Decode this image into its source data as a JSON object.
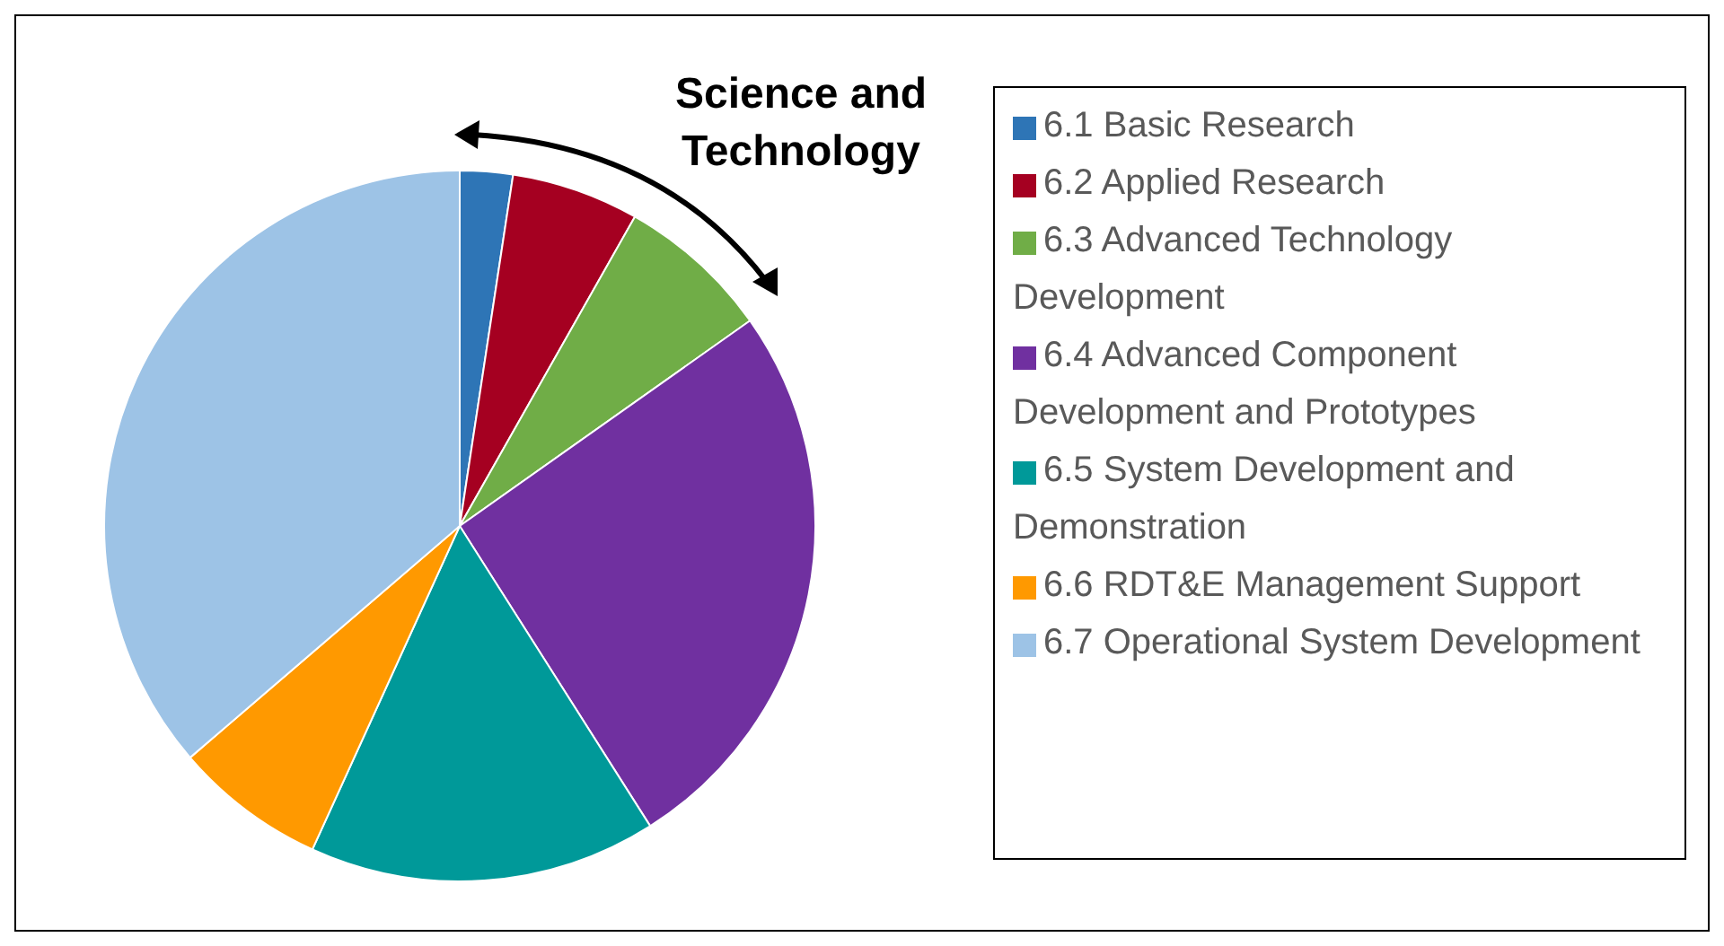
{
  "chart_data": {
    "type": "pie",
    "categories": [
      "6.1 Basic Research",
      "6.2 Applied Research",
      "6.3 Advanced Technology Development",
      "6.4 Advanced Component Development and Prototypes",
      "6.5 System Development and Demonstration",
      "6.6 RDT&E Management Support",
      "6.7 Operational System Development"
    ],
    "values": [
      2.4,
      5.8,
      7.0,
      25.8,
      15.8,
      6.9,
      36.3
    ],
    "colors": [
      "#2e75b6",
      "#a50021",
      "#70ad47",
      "#7030a0",
      "#009999",
      "#ff9900",
      "#9dc3e6"
    ],
    "annotations": [
      "Science and Technology"
    ],
    "legend": "right"
  }
}
